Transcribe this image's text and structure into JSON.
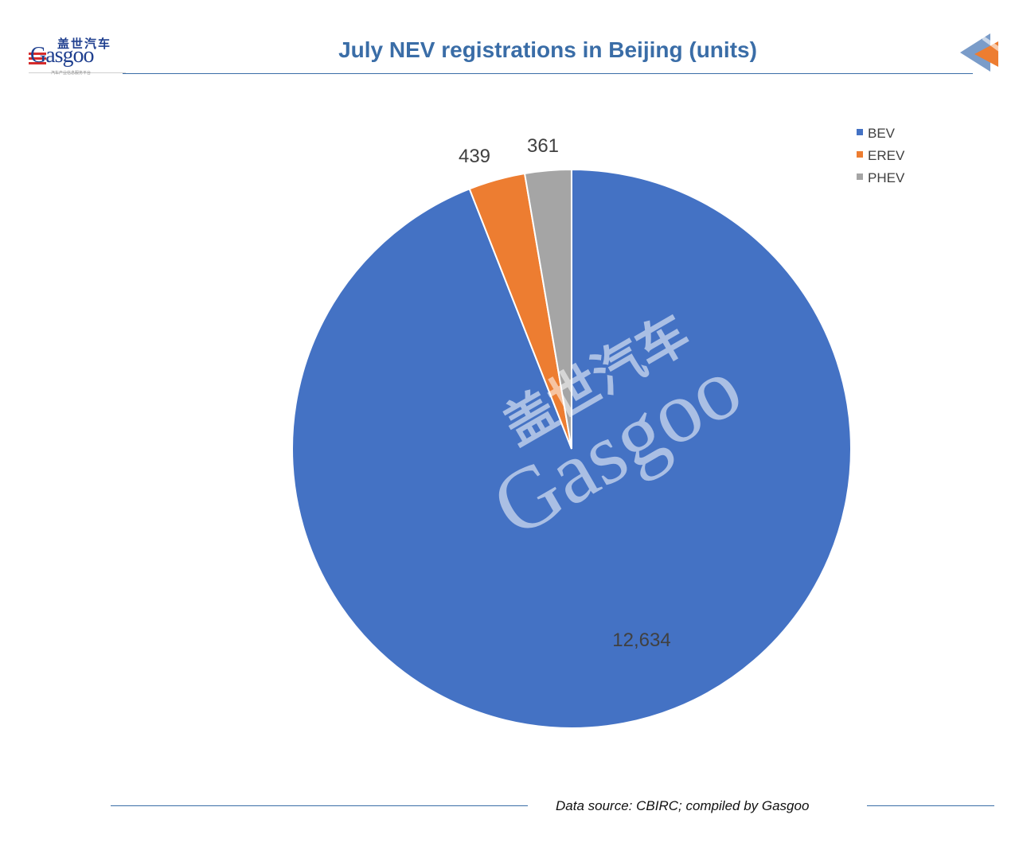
{
  "brand": {
    "name_cn": "盖世汽车",
    "name_en": "Gasgoo",
    "tagline_cn": "汽车产业信息服务平台"
  },
  "colors": {
    "accent": "#3a6da7",
    "bev": "#4472c4",
    "erev": "#ed7d31",
    "phev": "#a5a5a5"
  },
  "footer": {
    "source": "Data source: CBIRC; compiled by Gasgoo"
  },
  "chart_data": {
    "type": "pie",
    "title": "July NEV registrations in Beijing (units)",
    "start_angle": "12 o'clock, clockwise",
    "legend_position": "top-right",
    "categories": [
      "BEV",
      "EREV",
      "PHEV"
    ],
    "values": [
      12634,
      439,
      361
    ],
    "data_labels": [
      "12,634",
      "439",
      "361"
    ],
    "colors": [
      "#4472c4",
      "#ed7d31",
      "#a5a5a5"
    ],
    "watermark": "Gasgoo"
  }
}
